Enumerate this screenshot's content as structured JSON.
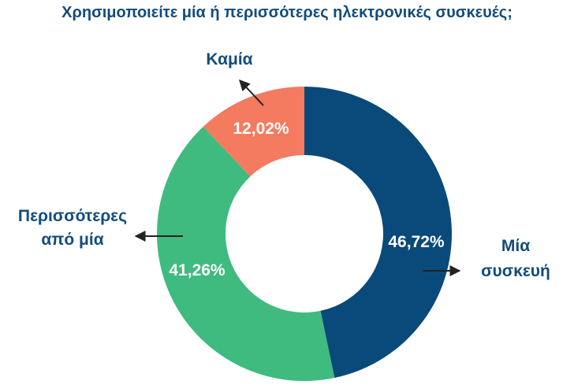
{
  "chart_data": {
    "type": "pie",
    "title": "Χρησιμοποιείτε μία ή περισσότερες ηλεκτρονικές συσκευές;",
    "slices": [
      {
        "label_lines": [
          "Μία",
          "συσκευή"
        ],
        "value": 46.72,
        "value_label": "46,72%",
        "color": "#0a4a7a"
      },
      {
        "label_lines": [
          "Περισσότερες",
          "από μία"
        ],
        "value": 41.26,
        "value_label": "41,26%",
        "color": "#40bb7f"
      },
      {
        "label_lines": [
          "Καμία"
        ],
        "value": 12.02,
        "value_label": "12,02%",
        "color": "#f47a60"
      }
    ],
    "donut": true,
    "legend": "none"
  },
  "colors": {
    "title": "#134c7c",
    "category_label": "#134c7c",
    "arrow": "#222222"
  }
}
